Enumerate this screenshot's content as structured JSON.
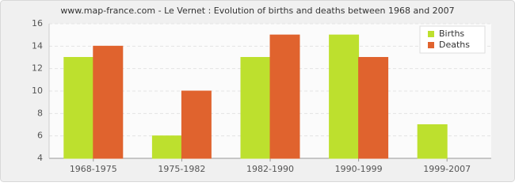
{
  "chart_data": {
    "type": "bar",
    "title": "www.map-france.com - Le Vernet : Evolution of births and deaths between 1968 and 2007",
    "categories": [
      "1968-1975",
      "1975-1982",
      "1982-1990",
      "1990-1999",
      "1999-2007"
    ],
    "series": [
      {
        "name": "Births",
        "color": "#bde02e",
        "values": [
          13,
          6,
          13,
          15,
          7
        ]
      },
      {
        "name": "Deaths",
        "color": "#e0632e",
        "values": [
          14,
          10,
          15,
          13,
          4
        ]
      }
    ],
    "ylim": [
      4,
      16
    ],
    "yticks": [
      4,
      6,
      8,
      10,
      12,
      14,
      16
    ],
    "grid": true,
    "legend": "top-right"
  }
}
